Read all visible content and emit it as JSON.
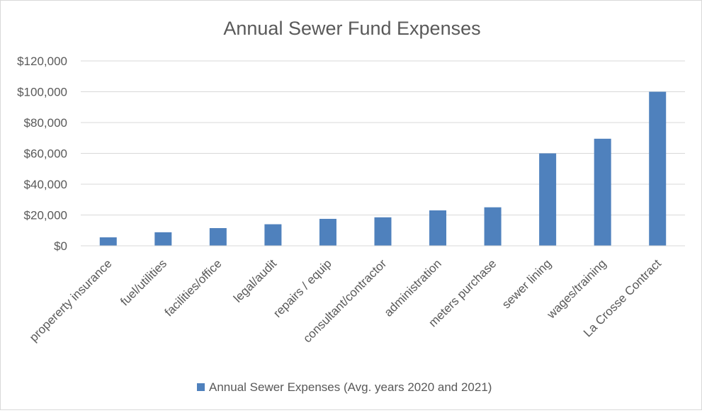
{
  "chart_data": {
    "type": "bar",
    "title": "Annual Sewer Fund Expenses",
    "xlabel": "",
    "ylabel": "",
    "categories": [
      "propererty insurance",
      "fuel/utilities",
      "facilities/office",
      "legal/audit",
      "repairs / equip",
      "consultant/contractor",
      "administration",
      "meters purchase",
      "sewer lining",
      "wages/training",
      "La Crosse Contract"
    ],
    "series": [
      {
        "name": "Annual Sewer Expenses (Avg. years 2020 and 2021)",
        "values": [
          5500,
          8800,
          11500,
          14000,
          17500,
          18500,
          23000,
          25000,
          60000,
          69500,
          100000
        ]
      }
    ],
    "ylim": [
      0,
      120000
    ],
    "yticks": [
      0,
      20000,
      40000,
      60000,
      80000,
      100000,
      120000
    ],
    "ytick_labels": [
      "$0",
      "$20,000",
      "$40,000",
      "$60,000",
      "$80,000",
      "$100,000",
      "$120,000"
    ],
    "grid": true,
    "legend_position": "bottom",
    "colors": {
      "bar": "#4f81bd",
      "grid": "#d9d9d9",
      "text": "#595959"
    }
  }
}
